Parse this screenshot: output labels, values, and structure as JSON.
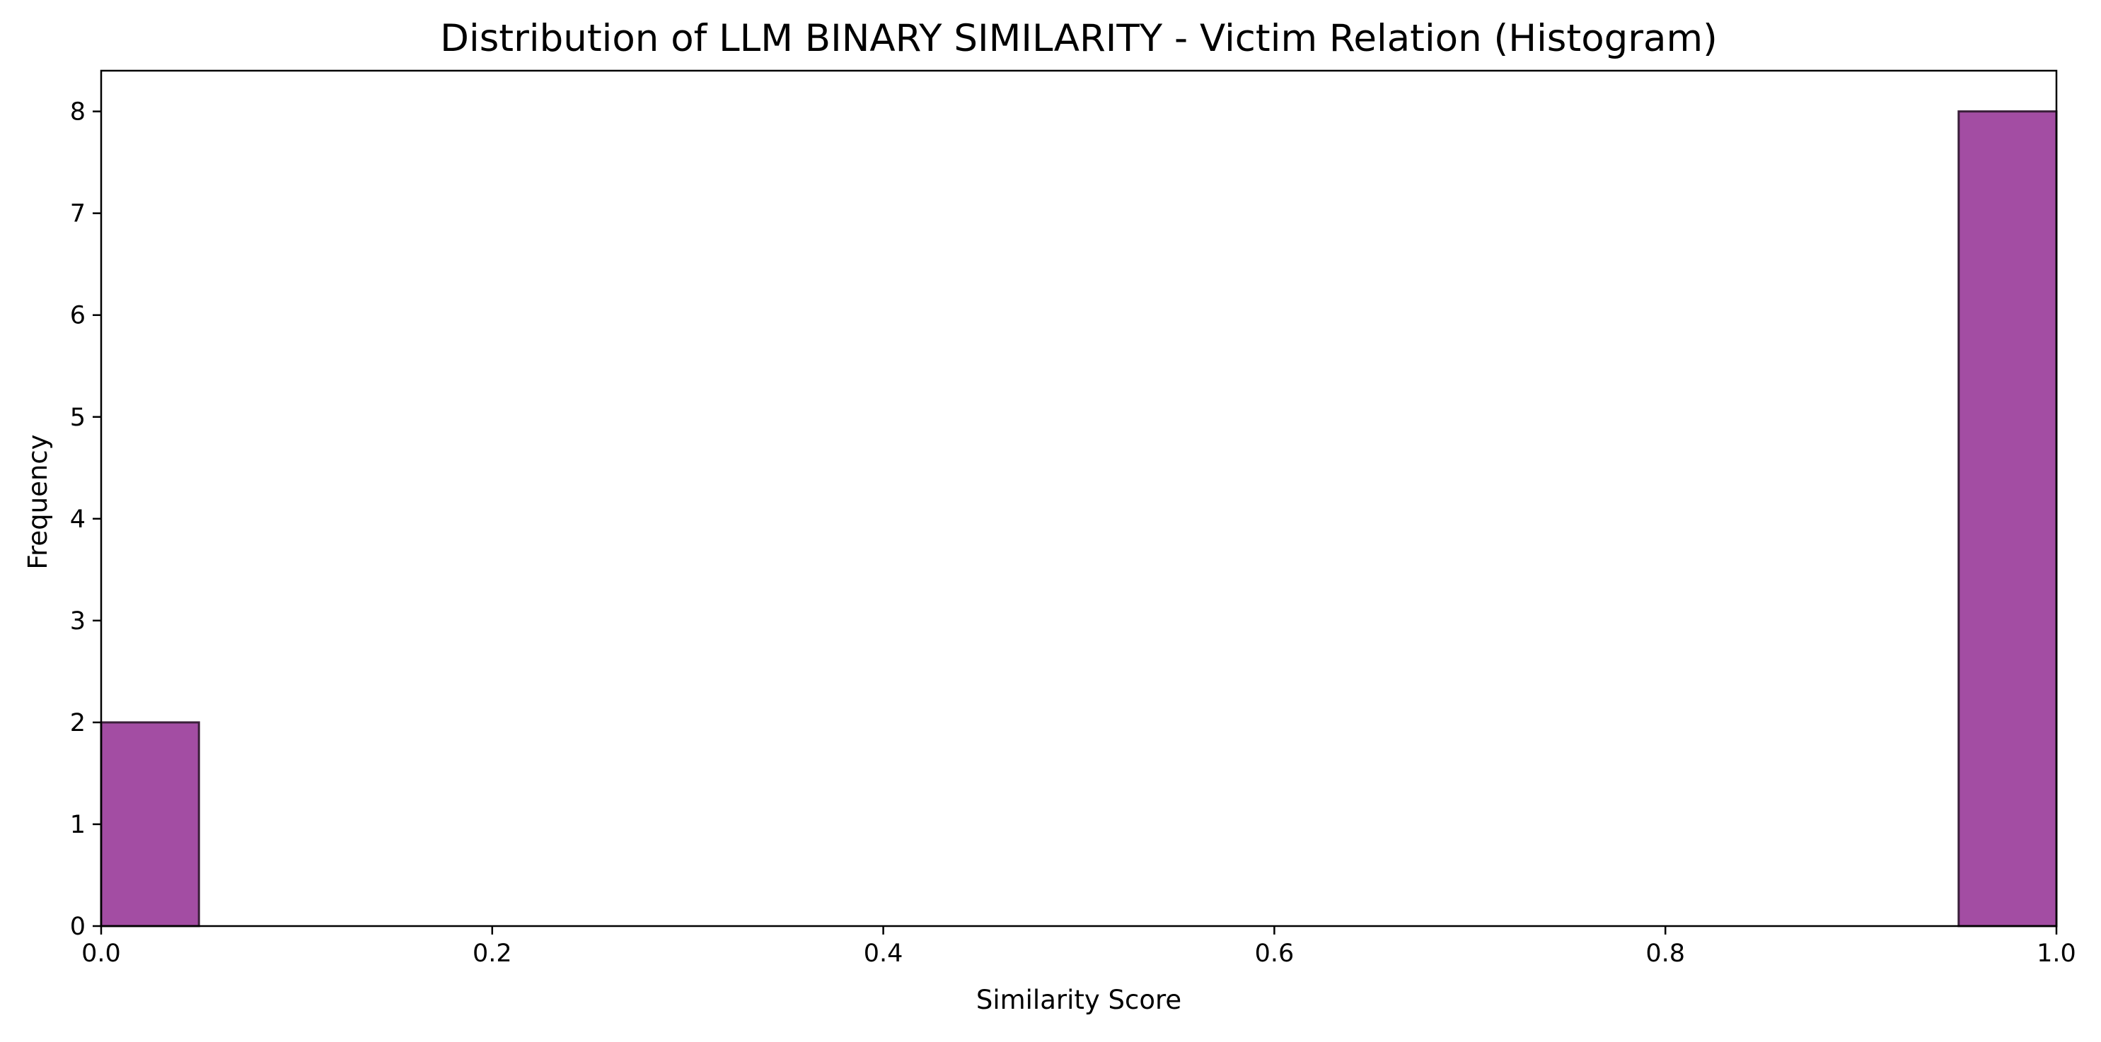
{
  "chart_data": {
    "type": "bar",
    "title": "Distribution of LLM BINARY SIMILARITY - Victim Relation (Histogram)",
    "xlabel": "Similarity Score",
    "ylabel": "Frequency",
    "xlim": [
      0.0,
      1.0
    ],
    "ylim": [
      0,
      8.4
    ],
    "x_ticks": [
      "0.0",
      "0.2",
      "0.4",
      "0.6",
      "0.8",
      "1.0"
    ],
    "y_ticks": [
      "0",
      "1",
      "2",
      "3",
      "4",
      "5",
      "6",
      "7",
      "8"
    ],
    "bins": [
      {
        "start": 0.0,
        "end": 0.05,
        "count": 2
      },
      {
        "start": 0.95,
        "end": 1.0,
        "count": 8
      }
    ],
    "bar_color": "#a34da3",
    "bar_edge_color": "#3a1f3a",
    "grid": false,
    "legend": "none"
  }
}
